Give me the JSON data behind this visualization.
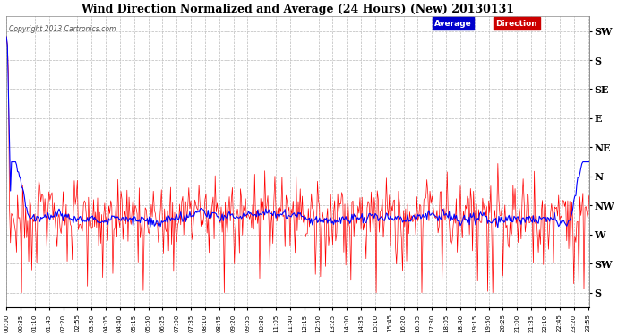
{
  "title": "Wind Direction Normalized and Average (24 Hours) (New) 20130131",
  "copyright": "Copyright 2013 Cartronics.com",
  "background_color": "#ffffff",
  "plot_bg_color": "#ffffff",
  "grid_color": "#bbbbbb",
  "ytick_labels": [
    "SW",
    "S",
    "SE",
    "E",
    "NE",
    "N",
    "NW",
    "W",
    "SW",
    "S"
  ],
  "ytick_values": [
    0,
    1,
    2,
    3,
    4,
    5,
    6,
    7,
    8,
    9
  ],
  "nw_level": 6.3,
  "seed": 12345,
  "n_points": 576,
  "xtick_step_min": 35
}
